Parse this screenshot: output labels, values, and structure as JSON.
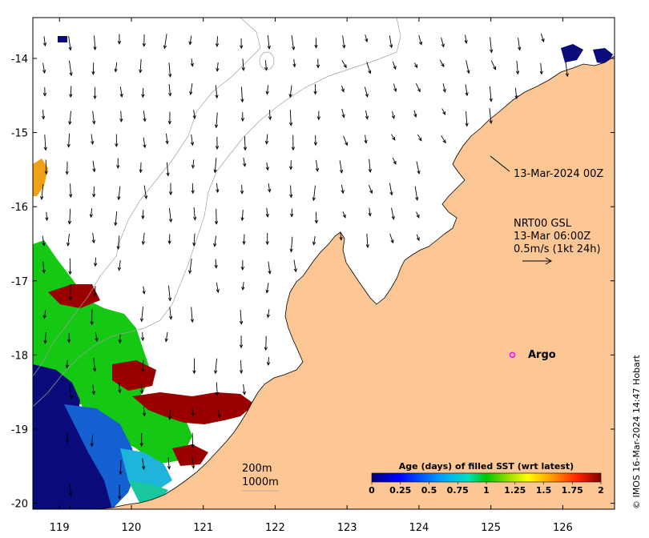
{
  "map": {
    "lat_ticks": [
      "-14",
      "-15",
      "-16",
      "-17",
      "-18",
      "-19",
      "-20"
    ],
    "lon_ticks": [
      "119",
      "120",
      "121",
      "122",
      "123",
      "124",
      "125",
      "126"
    ],
    "lat_range": [
      -20.08,
      -13.45
    ],
    "lon_range": [
      118.63,
      126.72
    ]
  },
  "annotations": {
    "date_label": "13-Mar-2024 00Z",
    "current_source": "NRT00 GSL",
    "current_time": "13-Mar 06:00Z",
    "scale_text": "0.5m/s (1kt 24h)",
    "argo_label": "Argo",
    "contour_200": "200m",
    "contour_1000": "1000m",
    "credit": "© IMOS 16-Mar-2024 14:47 Hobart"
  },
  "colorbar": {
    "title": "Age (days) of filled SST (wrt latest)",
    "ticks": [
      "0",
      "0.25",
      "0.5",
      "0.75",
      "1",
      "1.25",
      "1.5",
      "1.75",
      "2"
    ]
  },
  "colors": {
    "land": "#fcc794",
    "coast": "#000000",
    "bathy": "#a0a0a0",
    "argo": "#ff00ff",
    "sst_dark_blue": "#0a0a7a",
    "sst_blue": "#1460d2",
    "sst_cyan": "#1eb4dc",
    "sst_green": "#14c814",
    "sst_dark_red": "#9b0000",
    "sst_orange": "#f0a014"
  },
  "argo": {
    "lon": 125.3,
    "lat": -18.0
  }
}
